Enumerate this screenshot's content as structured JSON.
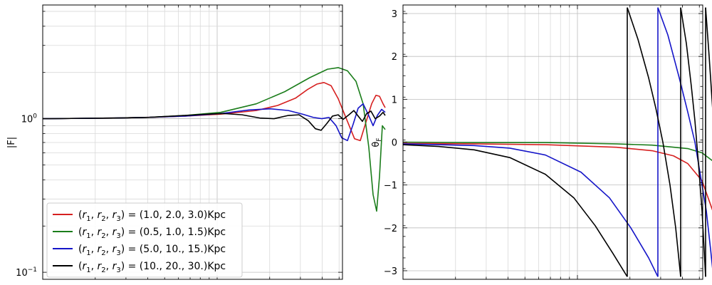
{
  "chart_data": [
    {
      "type": "line",
      "title": "",
      "xlabel": "",
      "ylabel": "|F|",
      "xscale": "log",
      "yscale": "log",
      "ylim": [
        0.09,
        5.5
      ],
      "grid": true,
      "legend_placement": "lower-left",
      "y_ticks": [
        {
          "v": 0.1,
          "base": "10",
          "exp": "−1"
        },
        {
          "v": 1,
          "base": "10",
          "exp": "0"
        }
      ],
      "series": [
        {
          "name": "(r1, r2, r3) = (1.0, 2.0, 3.0)Kpc",
          "label_main": "(r",
          "label_vars": [
            "1",
            "2",
            "3"
          ],
          "label_values": "(1.0, 2.0, 3.0)Kpc",
          "color": "#d62020",
          "points": [
            [
              0,
              1.0
            ],
            [
              10,
              1.0
            ],
            [
              50,
              1.005
            ],
            [
              100,
              1.01
            ],
            [
              150,
              1.02
            ],
            [
              200,
              1.04
            ],
            [
              250,
              1.07
            ],
            [
              300,
              1.13
            ],
            [
              330,
              1.22
            ],
            [
              355,
              1.36
            ],
            [
              372,
              1.55
            ],
            [
              385,
              1.68
            ],
            [
              395,
              1.72
            ],
            [
              405,
              1.64
            ],
            [
              415,
              1.35
            ],
            [
              428,
              0.96
            ],
            [
              438,
              0.74
            ],
            [
              446,
              0.72
            ],
            [
              454,
              0.95
            ],
            [
              462,
              1.25
            ],
            [
              468,
              1.42
            ],
            [
              473,
              1.4
            ],
            [
              478,
              1.25
            ],
            [
              481,
              1.18
            ]
          ]
        },
        {
          "name": "(r1, r2, r3) = (0.5, 1.0, 1.5)Kpc",
          "label_main": "(r",
          "label_vars": [
            "1",
            "2",
            "3"
          ],
          "label_values": "(0.5, 1.0, 1.5)Kpc",
          "color": "#1b7d1b",
          "points": [
            [
              0,
              1.0
            ],
            [
              10,
              1.0
            ],
            [
              50,
              1.005
            ],
            [
              100,
              1.01
            ],
            [
              150,
              1.02
            ],
            [
              200,
              1.05
            ],
            [
              250,
              1.1
            ],
            [
              300,
              1.25
            ],
            [
              340,
              1.5
            ],
            [
              375,
              1.85
            ],
            [
              400,
              2.1
            ],
            [
              415,
              2.15
            ],
            [
              428,
              2.05
            ],
            [
              440,
              1.75
            ],
            [
              450,
              1.25
            ],
            [
              458,
              0.65
            ],
            [
              464,
              0.32
            ],
            [
              469,
              0.25
            ],
            [
              473,
              0.42
            ],
            [
              477,
              0.9
            ],
            [
              481,
              0.85
            ]
          ]
        },
        {
          "name": "(r1, r2, r3) = (5.0, 10., 15.)Kpc",
          "label_main": "(r",
          "label_vars": [
            "1",
            "2",
            "3"
          ],
          "label_values": "(5.0, 10., 15.)Kpc",
          "color": "#1515c8",
          "points": [
            [
              0,
              1.0
            ],
            [
              10,
              1.0
            ],
            [
              50,
              1.005
            ],
            [
              100,
              1.01
            ],
            [
              150,
              1.02
            ],
            [
              200,
              1.04
            ],
            [
              250,
              1.08
            ],
            [
              290,
              1.14
            ],
            [
              320,
              1.16
            ],
            [
              345,
              1.13
            ],
            [
              365,
              1.07
            ],
            [
              380,
              1.02
            ],
            [
              392,
              1.0
            ],
            [
              402,
              1.02
            ],
            [
              412,
              0.9
            ],
            [
              420,
              0.75
            ],
            [
              428,
              0.72
            ],
            [
              436,
              0.92
            ],
            [
              443,
              1.17
            ],
            [
              450,
              1.25
            ],
            [
              457,
              1.07
            ],
            [
              464,
              0.9
            ],
            [
              470,
              1.05
            ],
            [
              476,
              1.15
            ],
            [
              481,
              1.1
            ]
          ]
        },
        {
          "name": "(r1, r2, r3) = (10., 20., 30.)Kpc",
          "label_main": "(r",
          "label_vars": [
            "1",
            "2",
            "3"
          ],
          "label_values": "(10., 20., 30.)Kpc",
          "color": "#000000",
          "points": [
            [
              0,
              1.0
            ],
            [
              10,
              1.0
            ],
            [
              50,
              1.005
            ],
            [
              100,
              1.01
            ],
            [
              150,
              1.02
            ],
            [
              200,
              1.05
            ],
            [
              230,
              1.07
            ],
            [
              255,
              1.08
            ],
            [
              280,
              1.06
            ],
            [
              305,
              1.01
            ],
            [
              325,
              1.0
            ],
            [
              345,
              1.05
            ],
            [
              360,
              1.06
            ],
            [
              373,
              0.97
            ],
            [
              383,
              0.86
            ],
            [
              391,
              0.84
            ],
            [
              399,
              0.93
            ],
            [
              407,
              1.04
            ],
            [
              415,
              1.06
            ],
            [
              422,
              0.99
            ],
            [
              430,
              1.06
            ],
            [
              437,
              1.13
            ],
            [
              443,
              1.04
            ],
            [
              449,
              0.96
            ],
            [
              455,
              1.08
            ],
            [
              461,
              1.12
            ],
            [
              467,
              1.0
            ],
            [
              473,
              1.04
            ],
            [
              478,
              1.1
            ],
            [
              481,
              1.05
            ]
          ]
        }
      ]
    },
    {
      "type": "line",
      "title": "",
      "xlabel": "",
      "ylabel": "θF",
      "ylabel_main": "θ",
      "ylabel_sub": "F",
      "xscale": "log",
      "ylim": [
        -3.2,
        3.2
      ],
      "y_ticks": [
        3,
        2,
        1,
        0,
        -1,
        -2,
        -3
      ],
      "y_tick_labels": [
        "3",
        "2",
        "1",
        "0",
        "−1",
        "−2",
        "−3"
      ],
      "grid": true,
      "series": [
        {
          "name": "(r1, r2, r3) = (1.0, 2.0, 3.0)Kpc",
          "color": "#d62020",
          "segments": [
            [
              [
                0,
                -0.03
              ],
              [
                100,
                -0.04
              ],
              [
                200,
                -0.06
              ],
              [
                300,
                -0.12
              ],
              [
                350,
                -0.2
              ],
              [
                380,
                -0.32
              ],
              [
                400,
                -0.5
              ],
              [
                420,
                -0.9
              ],
              [
                435,
                -1.6
              ],
              [
                445,
                -2.4
              ],
              [
                452,
                -3.14
              ]
            ],
            [
              [
                452,
                3.14
              ],
              [
                458,
                2.3
              ],
              [
                464,
                1.5
              ],
              [
                470,
                0.8
              ],
              [
                474,
                0.3
              ],
              [
                476,
                -0.3
              ],
              [
                478,
                -1.2
              ],
              [
                480,
                -2.2
              ],
              [
                482,
                -3.14
              ]
            ],
            [
              [
                482,
                3.14
              ],
              [
                486,
                2.4
              ],
              [
                490,
                1.6
              ],
              [
                494,
                1.2
              ]
            ]
          ]
        },
        {
          "name": "(r1, r2, r3) = (0.5, 1.0, 1.5)Kpc",
          "color": "#1b7d1b",
          "segments": [
            [
              [
                0,
                -0.0
              ],
              [
                100,
                -0.01
              ],
              [
                200,
                -0.01
              ],
              [
                300,
                -0.04
              ],
              [
                350,
                -0.07
              ],
              [
                400,
                -0.15
              ],
              [
                420,
                -0.25
              ],
              [
                440,
                -0.5
              ],
              [
                455,
                -1.0
              ],
              [
                465,
                -1.8
              ],
              [
                472,
                -2.6
              ],
              [
                476,
                -3.14
              ]
            ],
            [
              [
                476,
                3.14
              ],
              [
                480,
                2.6
              ],
              [
                485,
                2.2
              ],
              [
                490,
                2.0
              ],
              [
                494,
                1.9
              ]
            ]
          ]
        },
        {
          "name": "(r1, r2, r3) = (5.0, 10., 15.)Kpc",
          "color": "#1515c8",
          "segments": [
            [
              [
                0,
                -0.04
              ],
              [
                100,
                -0.08
              ],
              [
                150,
                -0.14
              ],
              [
                200,
                -0.3
              ],
              [
                250,
                -0.7
              ],
              [
                290,
                -1.3
              ],
              [
                320,
                -2.0
              ],
              [
                345,
                -2.7
              ],
              [
                358,
                -3.14
              ]
            ],
            [
              [
                358,
                3.14
              ],
              [
                372,
                2.5
              ],
              [
                388,
                1.5
              ],
              [
                400,
                0.7
              ],
              [
                410,
                0.0
              ],
              [
                418,
                -0.8
              ],
              [
                426,
                -1.6
              ],
              [
                432,
                -2.5
              ],
              [
                436,
                -3.14
              ]
            ],
            [
              [
                436,
                3.14
              ],
              [
                442,
                2.5
              ],
              [
                448,
                1.6
              ],
              [
                452,
                0.9
              ],
              [
                456,
                0.0
              ],
              [
                460,
                -1.0
              ],
              [
                464,
                -2.1
              ],
              [
                467,
                -3.14
              ]
            ],
            [
              [
                467,
                3.14
              ],
              [
                471,
                2.3
              ],
              [
                475,
                1.0
              ],
              [
                479,
                -0.5
              ],
              [
                482,
                -2.0
              ],
              [
                484,
                -3.14
              ]
            ]
          ]
        },
        {
          "name": "(r1, r2, r3) = (10., 20., 30.)Kpc",
          "color": "#000000",
          "segments": [
            [
              [
                0,
                -0.06
              ],
              [
                50,
                -0.1
              ],
              [
                100,
                -0.18
              ],
              [
                150,
                -0.36
              ],
              [
                200,
                -0.75
              ],
              [
                240,
                -1.3
              ],
              [
                270,
                -1.95
              ],
              [
                295,
                -2.6
              ],
              [
                315,
                -3.14
              ]
            ],
            [
              [
                315,
                3.14
              ],
              [
                330,
                2.4
              ],
              [
                345,
                1.5
              ],
              [
                355,
                0.8
              ],
              [
                365,
                0.0
              ],
              [
                375,
                -1.0
              ],
              [
                383,
                -2.0
              ],
              [
                390,
                -3.14
              ]
            ],
            [
              [
                390,
                3.14
              ],
              [
                398,
                2.3
              ],
              [
                405,
                1.3
              ],
              [
                410,
                0.5
              ],
              [
                415,
                -0.5
              ],
              [
                420,
                -1.6
              ],
              [
                425,
                -3.14
              ]
            ],
            [
              [
                425,
                3.14
              ],
              [
                430,
                2.0
              ],
              [
                434,
                1.0
              ],
              [
                438,
                0.0
              ],
              [
                441,
                -1.1
              ],
              [
                445,
                -3.14
              ]
            ],
            [
              [
                445,
                3.14
              ],
              [
                450,
                1.8
              ],
              [
                454,
                0.5
              ],
              [
                457,
                -0.8
              ],
              [
                460,
                -2.0
              ],
              [
                462,
                -3.14
              ]
            ],
            [
              [
                462,
                3.14
              ],
              [
                466,
                1.8
              ],
              [
                469,
                0.5
              ],
              [
                472,
                -1.2
              ],
              [
                474,
                -3.14
              ]
            ],
            [
              [
                474,
                3.14
              ],
              [
                478,
                1.2
              ],
              [
                481,
                -0.8
              ],
              [
                483,
                -3.14
              ]
            ]
          ]
        }
      ]
    }
  ]
}
